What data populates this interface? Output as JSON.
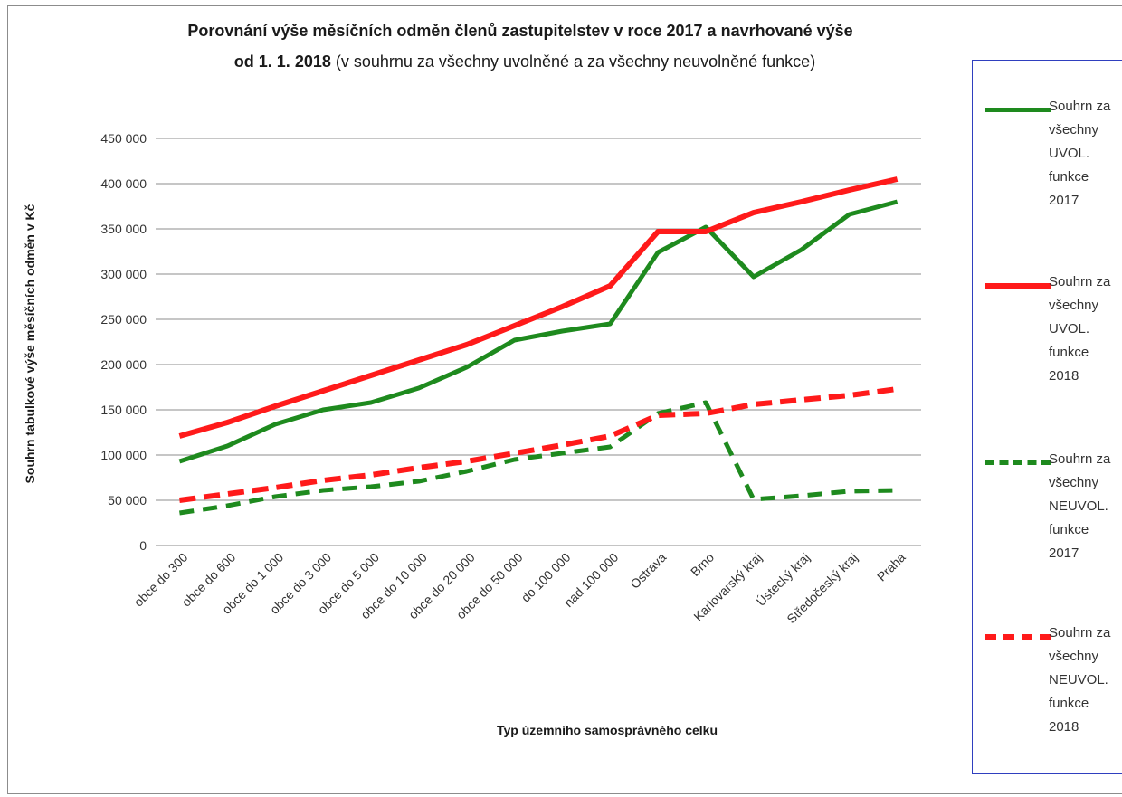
{
  "chart_data": {
    "type": "line",
    "title_bold": "Porovnání výše měsíčních odměn členů zastupitelstev v roce 2017 a navrhované výše",
    "title_line2_bold": "od 1. 1. 2018",
    "title_line2_normal": " (v souhrnu za všechny uvolněné a za všechny neuvolněné funkce)",
    "xlabel": "Typ územního samosprávného celku",
    "ylabel": "Souhrn tabulkové výše  měsíčních odměn v Kč",
    "ylim": [
      0,
      450000
    ],
    "yticks": [
      0,
      50000,
      100000,
      150000,
      200000,
      250000,
      300000,
      350000,
      400000,
      450000
    ],
    "ytick_labels": [
      "0",
      "50 000",
      "100 000",
      "150 000",
      "200 000",
      "250 000",
      "300 000",
      "350 000",
      "400 000",
      "450 000"
    ],
    "grid": true,
    "legend_position": "right",
    "categories": [
      "obce do 300",
      "obce do 600",
      "obce do 1 000",
      "obce do 3 000",
      "obce do 5 000",
      "obce do 10 000",
      "obce do 20 000",
      "obce do 50 000",
      "do 100 000",
      "nad 100 000",
      "Ostrava",
      "Brno",
      "Karlovarský kraj",
      "Ústecký kraj",
      "Středočeský kraj",
      "Praha"
    ],
    "series": [
      {
        "name": "Souhrn za všechny UVOL. funkce 2017",
        "color": "#1e8a1e",
        "dashed": false,
        "values": [
          93000,
          110000,
          134000,
          150000,
          158000,
          174000,
          197000,
          227000,
          237000,
          245000,
          324000,
          352000,
          297000,
          327000,
          366000,
          380000
        ]
      },
      {
        "name": "Souhrn za všechny UVOL. funkce 2018",
        "color": "#ff1a1a",
        "dashed": false,
        "values": [
          121000,
          136000,
          154000,
          171000,
          188000,
          205000,
          222000,
          243000,
          264000,
          287000,
          347000,
          347000,
          368000,
          380000,
          393000,
          405000
        ]
      },
      {
        "name": "Souhrn za všechny NEUVOL. funkce 2017",
        "color": "#1e8a1e",
        "dashed": true,
        "values": [
          36000,
          44000,
          54000,
          61000,
          65000,
          71000,
          82000,
          95000,
          102000,
          109000,
          146000,
          158000,
          51000,
          55000,
          60000,
          61000
        ]
      },
      {
        "name": "Souhrn za všechny NEUVOL. funkce 2018",
        "color": "#ff1a1a",
        "dashed": true,
        "values": [
          50000,
          57000,
          64000,
          72000,
          78000,
          86000,
          93000,
          102000,
          111000,
          121000,
          144000,
          146000,
          156000,
          161000,
          166000,
          173000
        ]
      }
    ]
  },
  "legend": {
    "items": [
      {
        "text": "Souhrn za\nvšechny\nUVOL.\nfunkce\n2017"
      },
      {
        "text": "Souhrn za\nvšechny\nUVOL.\nfunkce\n2018"
      },
      {
        "text": "Souhrn za\nvšechny\nNEUVOL.\nfunkce\n2017"
      },
      {
        "text": "Souhrn za\nvšechny\nNEUVOL.\nfunkce\n2018"
      }
    ]
  }
}
